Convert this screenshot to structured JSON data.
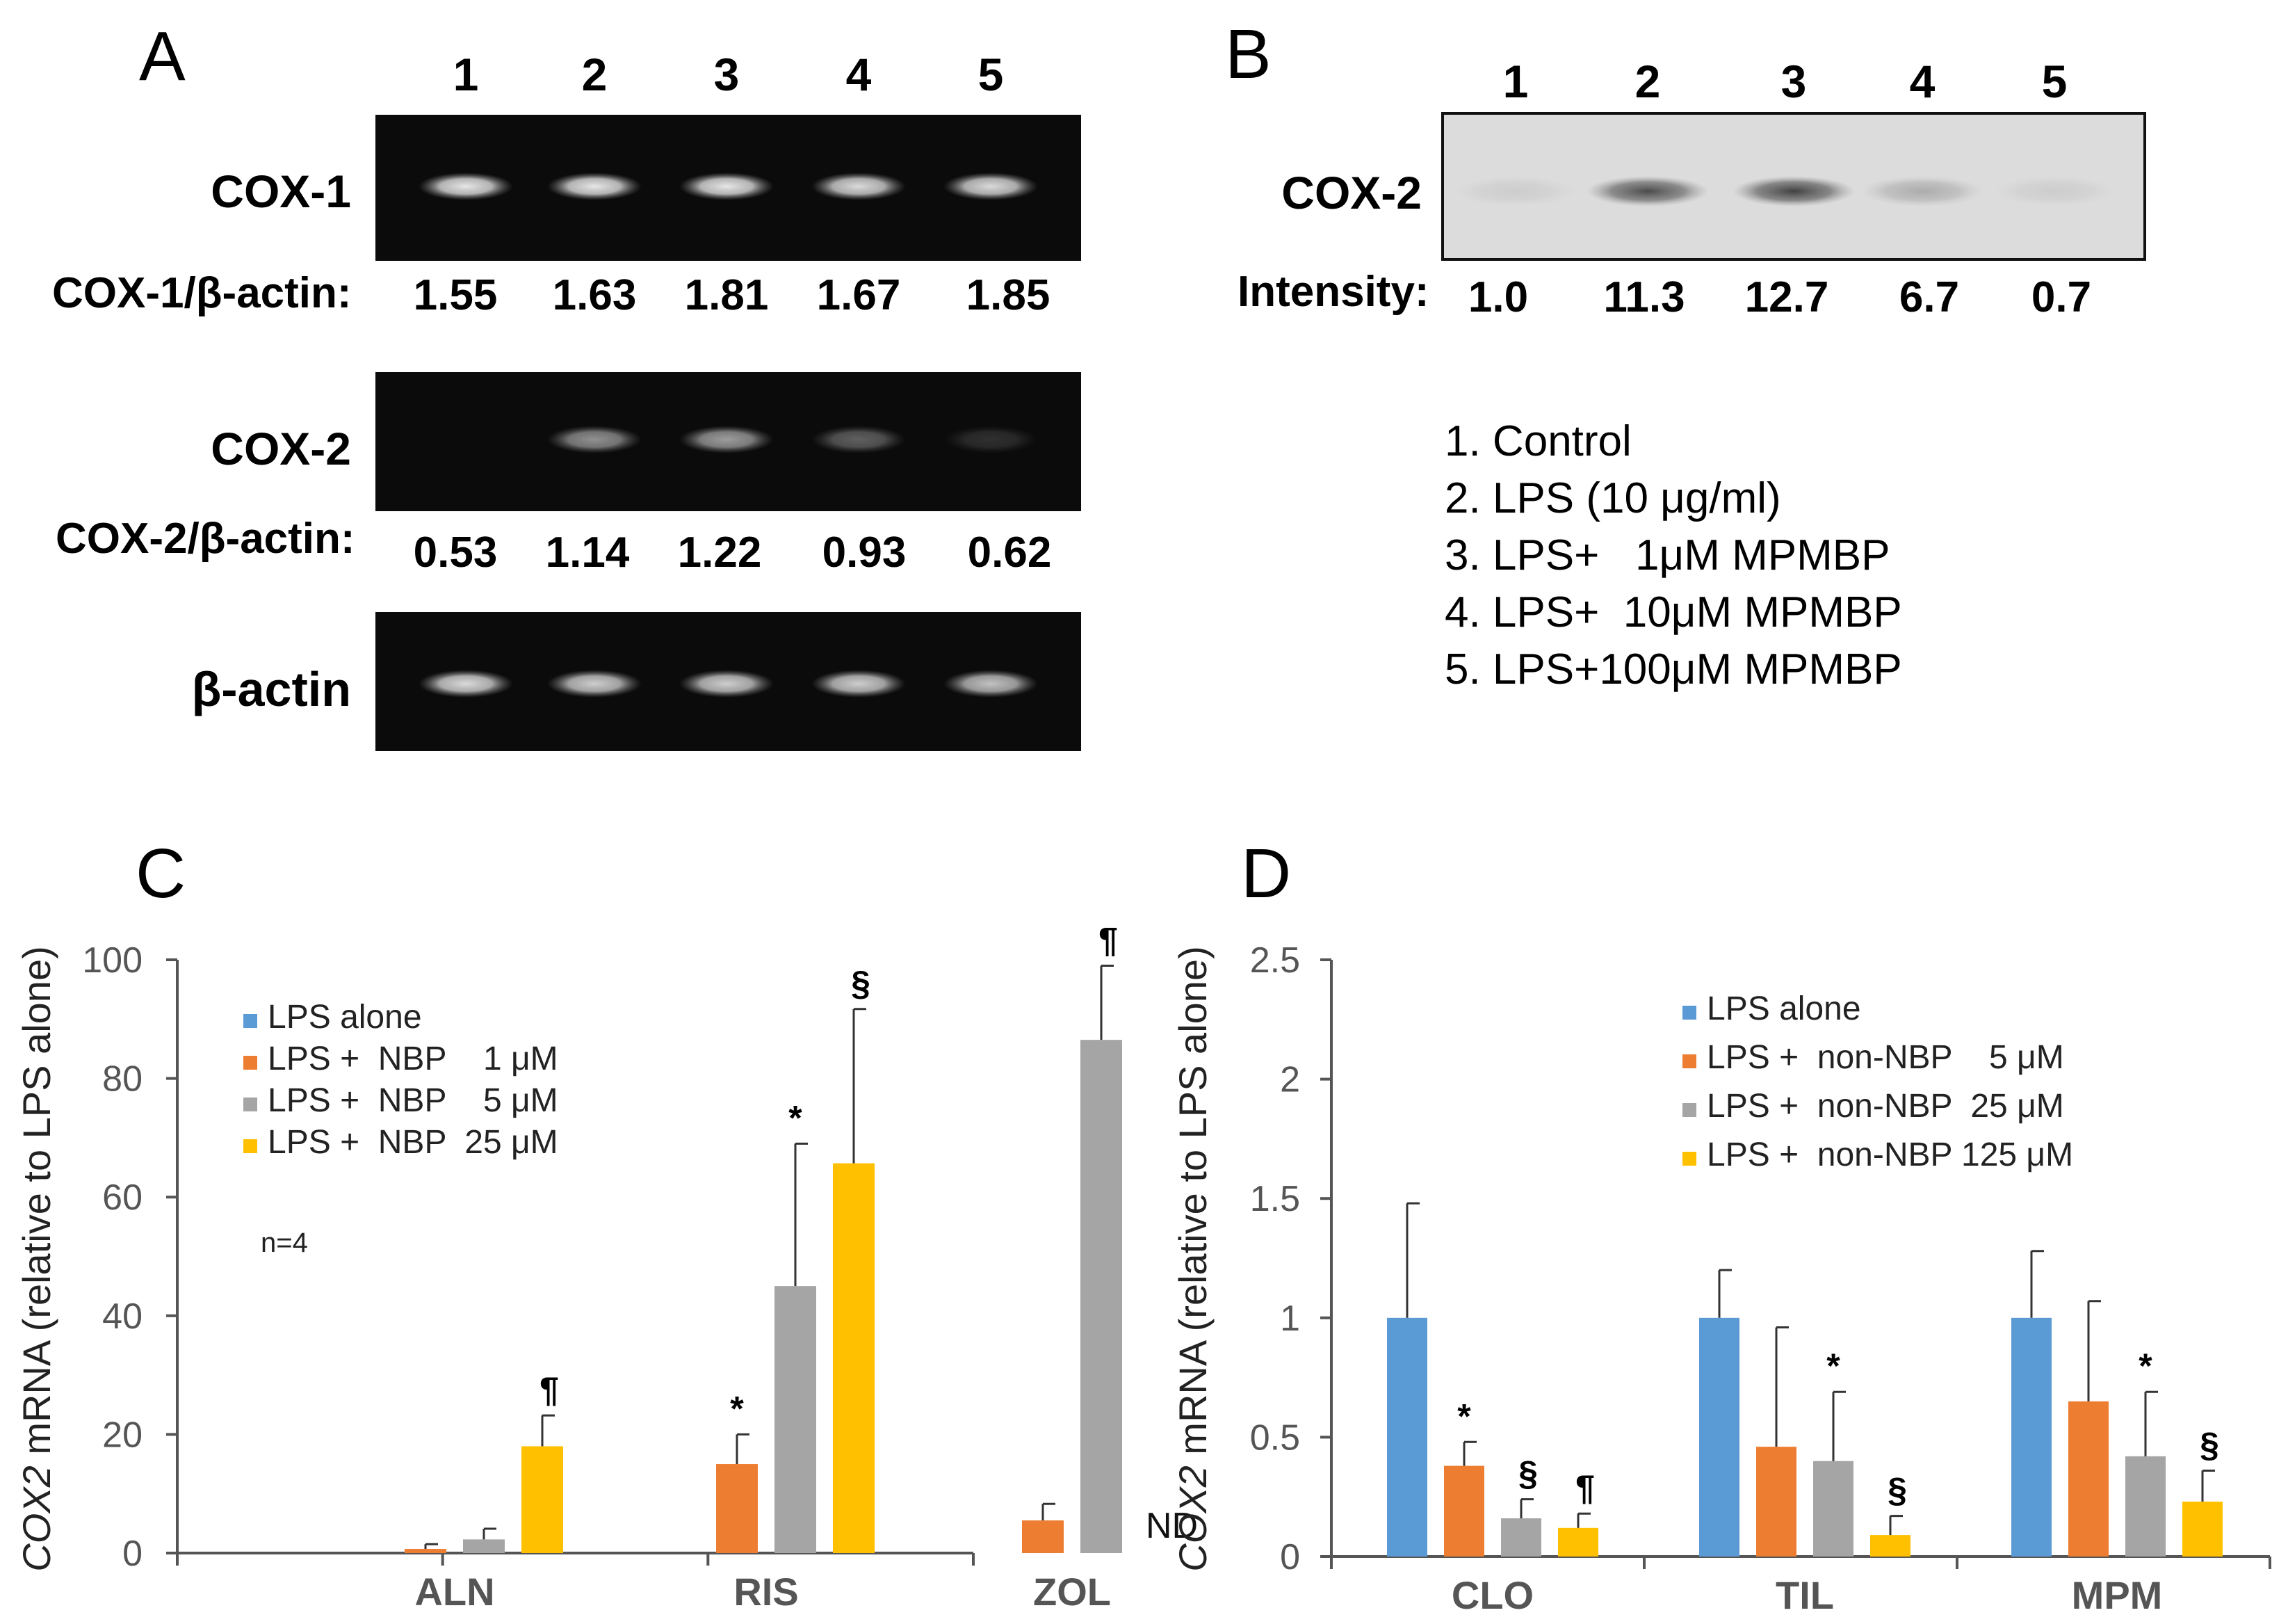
{
  "panelA": {
    "letter": "A",
    "lanes": [
      "1",
      "2",
      "3",
      "4",
      "5"
    ],
    "cox1": {
      "label": "COX-1",
      "ratio_label": "COX-1/β-actin:",
      "band_strength": [
        0.9,
        0.9,
        0.9,
        0.85,
        0.85
      ],
      "ratios": [
        "1.55",
        "1.63",
        "1.81",
        "1.67",
        "1.85"
      ]
    },
    "cox2": {
      "label": "COX-2",
      "ratio_label": "COX-2/β-actin:",
      "band_strength": [
        0,
        0.55,
        0.6,
        0.35,
        0.15
      ],
      "ratios": [
        "0.53",
        "1.14",
        "1.22",
        "0.93",
        "0.62"
      ]
    },
    "actin": {
      "label": "β-actin",
      "band_strength": [
        0.85,
        0.8,
        0.8,
        0.8,
        0.75
      ]
    }
  },
  "panelB": {
    "letter": "B",
    "lanes": [
      "1",
      "2",
      "3",
      "4",
      "5"
    ],
    "label": "COX-2",
    "band_strength": [
      0.08,
      0.75,
      0.8,
      0.25,
      0.08
    ],
    "intensity_label": "Intensity:",
    "intensities": [
      "1.0",
      "11.3",
      "12.7",
      "6.7",
      "0.7"
    ],
    "legend": [
      "1. Control",
      "2. LPS (10 μg/ml)",
      "3. LPS+   1μM MPMBP",
      "4. LPS+  10μM MPMBP",
      "5. LPS+100μM MPMBP"
    ]
  },
  "chart_data": [
    {
      "panel": "C",
      "type": "bar",
      "ylabel_italic": "COX2",
      "ylabel_rest": " mRNA (relative to LPS alone)",
      "ylim": [
        0,
        100
      ],
      "yticks": [
        "0",
        "20",
        "40",
        "60",
        "80",
        "100"
      ],
      "categories": [
        "ALN",
        "RIS",
        "ZOL"
      ],
      "colors": [
        "#5b9bd5",
        "#ed7d31",
        "#a5a5a5",
        "#ffc000"
      ],
      "series": [
        {
          "name": "LPS alone",
          "values": [
            0,
            0,
            0
          ],
          "errors": [
            0,
            0,
            0
          ]
        },
        {
          "name": "LPS +  NBP    1 μM",
          "values": [
            0.7,
            15,
            5.5
          ],
          "errors": [
            0.8,
            5,
            2.8
          ]
        },
        {
          "name": "LPS +  NBP    5 μM",
          "values": [
            2.3,
            45,
            86.5
          ],
          "errors": [
            1.8,
            24,
            12.5
          ]
        },
        {
          "name": "LPS +  NBP  25 μM",
          "values": [
            18,
            65.7,
            null
          ],
          "errors": [
            5.2,
            26,
            0
          ]
        }
      ],
      "marks": [
        {
          "cat": 0,
          "series": 3,
          "text": "¶"
        },
        {
          "cat": 1,
          "series": 1,
          "text": "*"
        },
        {
          "cat": 1,
          "series": 2,
          "text": "*"
        },
        {
          "cat": 1,
          "series": 3,
          "text": "§"
        },
        {
          "cat": 2,
          "series": 2,
          "text": "¶"
        }
      ],
      "nd_label": "ND",
      "n_label": "n=4"
    },
    {
      "panel": "D",
      "type": "bar",
      "ylabel_italic": "COX2",
      "ylabel_rest": " mRNA (relative to LPS alone)",
      "ylim": [
        0,
        2.5
      ],
      "yticks": [
        "0",
        "0.5",
        "1",
        "1.5",
        "2",
        "2.5"
      ],
      "categories": [
        "CLO",
        "TIL",
        "MPM"
      ],
      "colors": [
        "#5b9bd5",
        "#ed7d31",
        "#a5a5a5",
        "#ffc000"
      ],
      "series": [
        {
          "name": "LPS alone",
          "values": [
            1,
            1,
            1
          ],
          "errors": [
            0.48,
            0.2,
            0.28
          ]
        },
        {
          "name": "LPS +  non-NBP    5 μM",
          "values": [
            0.38,
            0.46,
            0.65
          ],
          "errors": [
            0.1,
            0.5,
            0.42
          ]
        },
        {
          "name": "LPS +  non-NBP  25 μM",
          "values": [
            0.16,
            0.4,
            0.42
          ],
          "errors": [
            0.08,
            0.29,
            0.27
          ]
        },
        {
          "name": "LPS +  non-NBP 125 μM",
          "values": [
            0.12,
            0.09,
            0.23
          ],
          "errors": [
            0.06,
            0.08,
            0.13
          ]
        }
      ],
      "marks": [
        {
          "cat": 0,
          "series": 1,
          "text": "*"
        },
        {
          "cat": 0,
          "series": 2,
          "text": "§"
        },
        {
          "cat": 0,
          "series": 3,
          "text": "¶"
        },
        {
          "cat": 1,
          "series": 2,
          "text": "*"
        },
        {
          "cat": 1,
          "series": 3,
          "text": "§"
        },
        {
          "cat": 2,
          "series": 2,
          "text": "*"
        },
        {
          "cat": 2,
          "series": 3,
          "text": "§"
        }
      ]
    }
  ]
}
